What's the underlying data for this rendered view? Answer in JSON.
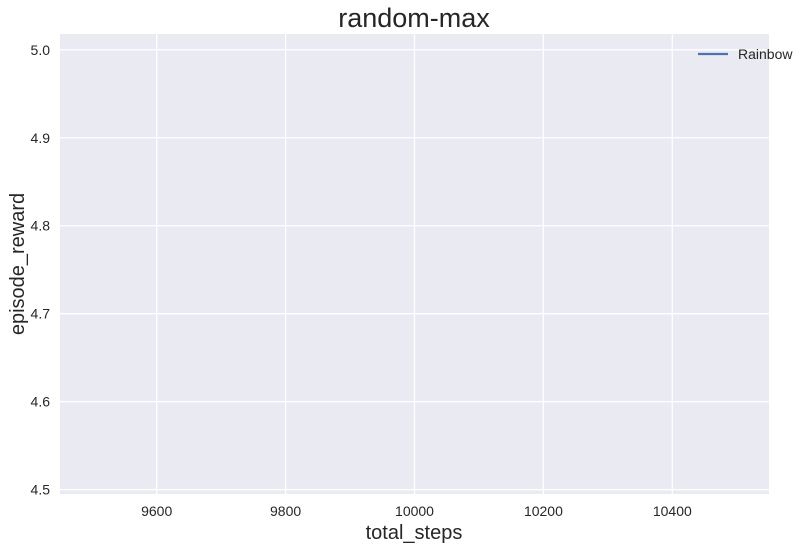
{
  "chart_data": {
    "type": "line",
    "title": "random-max",
    "xlabel": "total_steps",
    "ylabel": "episode_reward",
    "xlim": [
      9450,
      10550
    ],
    "ylim": [
      4.495,
      5.018
    ],
    "xticks": [
      9600,
      9800,
      10000,
      10200,
      10400
    ],
    "xtick_labels": [
      "9600",
      "9800",
      "10000",
      "10200",
      "10400"
    ],
    "yticks": [
      4.5,
      4.6,
      4.7,
      4.8,
      4.9,
      5.0
    ],
    "ytick_labels": [
      "4.5",
      "4.6",
      "4.7",
      "4.8",
      "4.9",
      "5.0"
    ],
    "grid": true,
    "legend_position": "top-right",
    "series": [
      {
        "name": "Rainbow",
        "color": "#4c72b0",
        "x": [],
        "y": []
      }
    ],
    "colors": {
      "background": "#eaeaf2",
      "grid": "#ffffff"
    }
  }
}
